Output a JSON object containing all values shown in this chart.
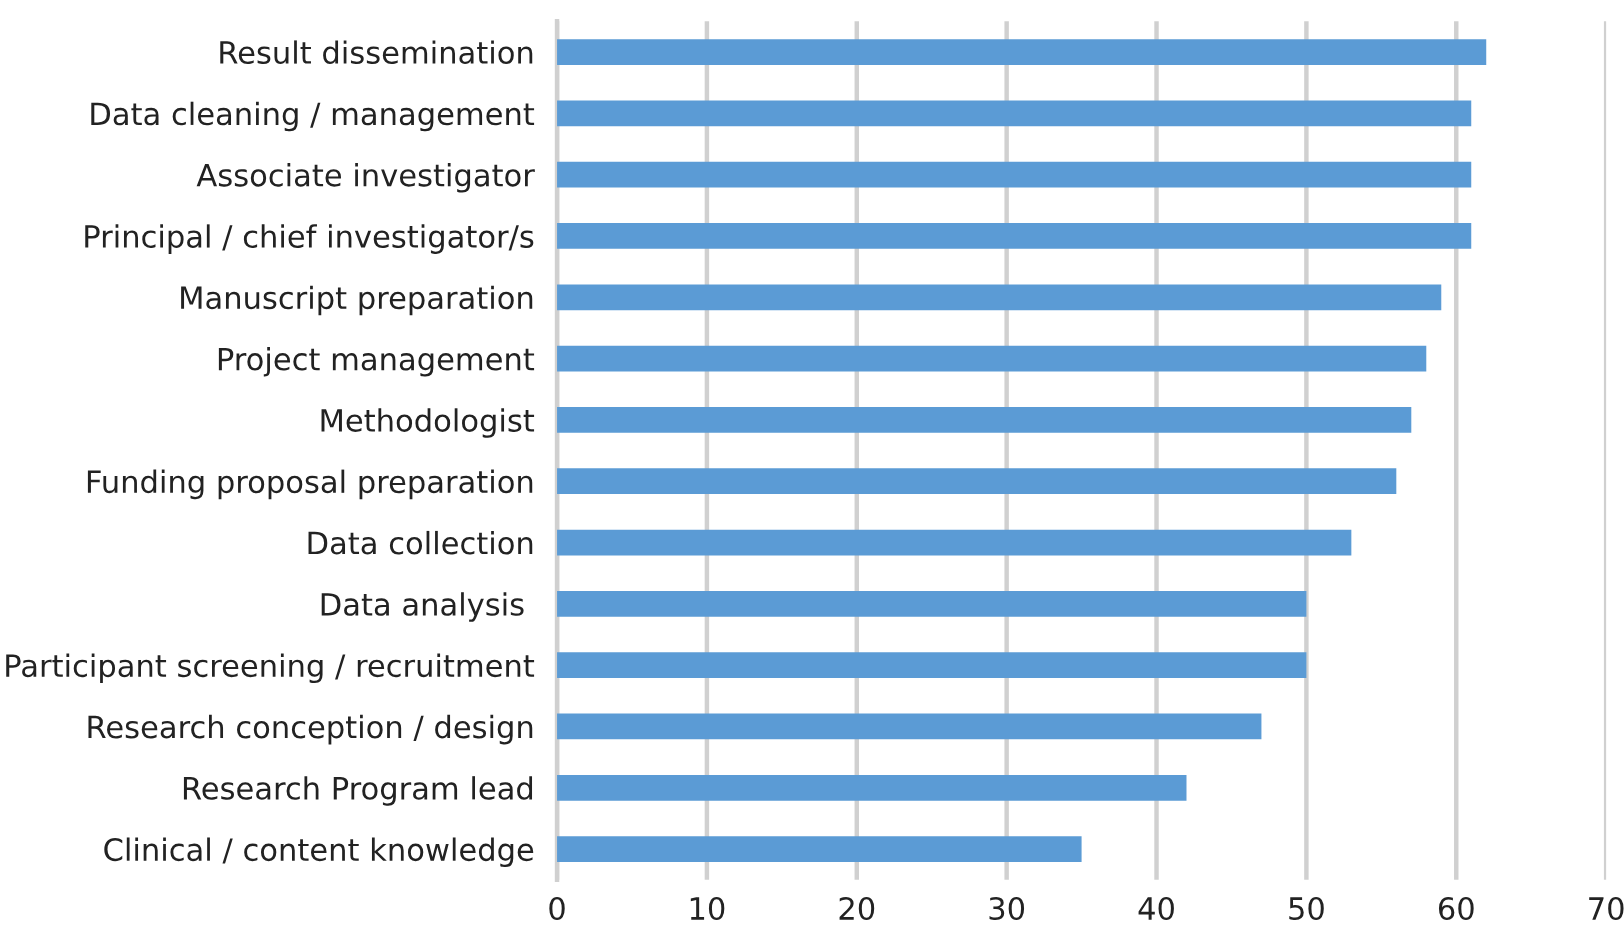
{
  "chart_data": {
    "type": "bar",
    "orientation": "horizontal",
    "categories": [
      "Result dissemination",
      "Data cleaning / management",
      "Associate investigator",
      "Principal / chief investigator/s",
      "Manuscript preparation",
      "Project management",
      "Methodologist",
      "Funding proposal preparation",
      "Data collection",
      "Data analysis ",
      "Participant screening / recruitment",
      "Research conception / design",
      "Research Program lead",
      "Clinical / content knowledge"
    ],
    "values": [
      62,
      61,
      61,
      61,
      59,
      58,
      57,
      56,
      53,
      50,
      50,
      47,
      42,
      35
    ],
    "color": "#5b9bd5",
    "xlim": [
      0,
      70
    ],
    "xticks": [
      0,
      10,
      20,
      30,
      40,
      50,
      60,
      70
    ],
    "grid": "x",
    "legend": false
  }
}
